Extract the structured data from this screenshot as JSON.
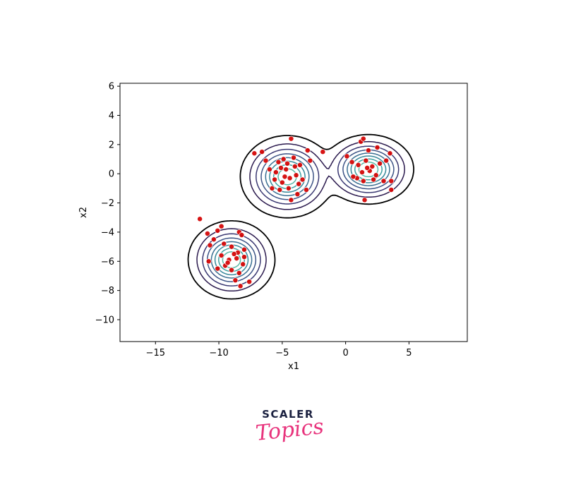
{
  "chart_data": {
    "type": "scatter",
    "subtype": "kde-contour-overlay",
    "title": "",
    "xlabel": "x1",
    "ylabel": "x2",
    "xlim": [
      -17.8,
      9.6
    ],
    "ylim": [
      -11.5,
      6.2
    ],
    "x_ticks": [
      -15,
      -10,
      -5,
      0,
      5
    ],
    "y_ticks": [
      -10,
      -8,
      -6,
      -4,
      -2,
      0,
      2,
      4,
      6
    ],
    "x_tick_labels": [
      "−15",
      "−10",
      "−5",
      "0",
      "5"
    ],
    "y_tick_labels": [
      "−10",
      "−8",
      "−6",
      "−4",
      "−2",
      "0",
      "2",
      "4",
      "6"
    ],
    "grid": false,
    "legend": "none",
    "point_color": "#d40000",
    "point_edge_color": "#ffffff",
    "contour_colormap": [
      "#000000",
      "#2b1a4e",
      "#3a3872",
      "#3d5486",
      "#3a6f92",
      "#37889a",
      "#3fa1a0",
      "#5ab8a5"
    ],
    "clusters": [
      {
        "center": [
          -4.6,
          -0.2
        ],
        "sx": 1.25,
        "sy": 0.95,
        "n": 90
      },
      {
        "center": [
          1.8,
          0.3
        ],
        "sx": 1.2,
        "sy": 0.8,
        "n": 75
      },
      {
        "center": [
          -9.0,
          -5.9
        ],
        "sx": 1.15,
        "sy": 0.9,
        "n": 80
      }
    ],
    "points": [
      [
        -7.2,
        1.4
      ],
      [
        -6.6,
        1.5
      ],
      [
        -4.3,
        2.4
      ],
      [
        -3.0,
        1.6
      ],
      [
        -1.8,
        1.5
      ],
      [
        -6.0,
        0.3
      ],
      [
        -5.3,
        0.8
      ],
      [
        -4.9,
        1.0
      ],
      [
        -4.1,
        1.1
      ],
      [
        -3.6,
        0.6
      ],
      [
        -5.6,
        -0.4
      ],
      [
        -5.0,
        -0.6
      ],
      [
        -4.4,
        -0.3
      ],
      [
        -3.9,
        -0.1
      ],
      [
        -4.7,
        0.3
      ],
      [
        -5.2,
        -1.1
      ],
      [
        -4.5,
        -1.0
      ],
      [
        -3.7,
        -0.7
      ],
      [
        -3.1,
        -1.1
      ],
      [
        -4.3,
        -1.8
      ],
      [
        -3.8,
        -1.4
      ],
      [
        -5.8,
        -1.0
      ],
      [
        -6.3,
        0.9
      ],
      [
        -2.8,
        0.9
      ],
      [
        -4.0,
        0.5
      ],
      [
        -4.8,
        -0.2
      ],
      [
        -5.5,
        0.1
      ],
      [
        -3.4,
        -0.4
      ],
      [
        -4.6,
        0.7
      ],
      [
        -5.1,
        0.4
      ],
      [
        1.2,
        2.2
      ],
      [
        1.4,
        2.4
      ],
      [
        1.8,
        1.6
      ],
      [
        2.5,
        1.8
      ],
      [
        3.5,
        1.4
      ],
      [
        3.2,
        0.9
      ],
      [
        0.1,
        1.2
      ],
      [
        0.5,
        0.8
      ],
      [
        1.0,
        0.6
      ],
      [
        1.6,
        0.9
      ],
      [
        2.1,
        0.5
      ],
      [
        2.7,
        0.7
      ],
      [
        1.3,
        0.1
      ],
      [
        1.9,
        0.2
      ],
      [
        2.4,
        -0.1
      ],
      [
        0.9,
        -0.3
      ],
      [
        1.4,
        -0.5
      ],
      [
        2.2,
        -0.4
      ],
      [
        3.0,
        -0.5
      ],
      [
        3.6,
        -0.5
      ],
      [
        3.6,
        -1.1
      ],
      [
        1.5,
        -1.8
      ],
      [
        0.6,
        -0.2
      ],
      [
        1.7,
        0.4
      ],
      [
        -11.5,
        -3.1
      ],
      [
        -10.9,
        -4.1
      ],
      [
        -10.1,
        -3.9
      ],
      [
        -9.8,
        -3.6
      ],
      [
        -8.4,
        -4.0
      ],
      [
        -8.2,
        -4.2
      ],
      [
        -10.4,
        -4.5
      ],
      [
        -9.6,
        -4.8
      ],
      [
        -9.0,
        -5.0
      ],
      [
        -8.5,
        -5.4
      ],
      [
        -8.0,
        -5.2
      ],
      [
        -9.8,
        -5.6
      ],
      [
        -9.2,
        -5.9
      ],
      [
        -8.6,
        -5.8
      ],
      [
        -8.1,
        -6.2
      ],
      [
        -9.5,
        -6.3
      ],
      [
        -9.0,
        -6.6
      ],
      [
        -8.4,
        -6.8
      ],
      [
        -8.7,
        -7.3
      ],
      [
        -8.3,
        -7.7
      ],
      [
        -7.6,
        -7.4
      ],
      [
        -10.1,
        -6.5
      ],
      [
        -10.8,
        -6.0
      ],
      [
        -9.3,
        -6.1
      ],
      [
        -8.8,
        -5.5
      ],
      [
        -8.0,
        -5.7
      ],
      [
        -10.7,
        -4.9
      ]
    ]
  },
  "logo": {
    "line1": "SCALER",
    "line2": "Topics"
  }
}
